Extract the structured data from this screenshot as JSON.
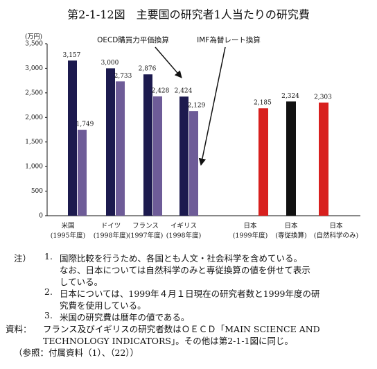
{
  "chart_data": {
    "type": "bar",
    "title": "第2-1-12図　主要国の研究者1人当たりの研究費",
    "unit_label": "(万円)",
    "categories": [
      "米国",
      "ドイツ",
      "フランス",
      "イギリス",
      "日本",
      "日本",
      "日本"
    ],
    "category_notes": [
      "(1995年度)",
      "(1998年度)",
      "(1997年度)",
      "(1998年度)",
      "(1999年度)",
      "(専従換算)",
      "(自然科学のみ)"
    ],
    "series": [
      {
        "name": "OECD購買力平価換算",
        "color": "#1c1a4e",
        "values": [
          3157,
          3000,
          2876,
          2424,
          null,
          null,
          null
        ],
        "value_labels": [
          "3,157",
          "3,000",
          "2,876",
          "2,424",
          null,
          null,
          null
        ]
      },
      {
        "name": "IMF為替レート換算",
        "color": "#6e5c98",
        "values": [
          1749,
          2733,
          2428,
          2129,
          null,
          null,
          null
        ],
        "value_labels": [
          "1,749",
          "2,733",
          "2,428",
          "2,129",
          null,
          null,
          null
        ]
      },
      {
        "colors": [
          null,
          null,
          null,
          null,
          "#d8201e",
          "#111111",
          "#d8201e"
        ],
        "values": [
          null,
          null,
          null,
          null,
          2185,
          2324,
          2303
        ],
        "value_labels": [
          null,
          null,
          null,
          null,
          "2,185",
          "2,324",
          "2,303"
        ]
      }
    ],
    "ylim": [
      0,
      3500
    ],
    "yticks": [
      0,
      500,
      {
        "value": 1000,
        "label": "1,000"
      },
      {
        "value": 1500,
        "label": "1,500"
      },
      {
        "value": 2000,
        "label": "2,000"
      },
      {
        "value": 2500,
        "label": "2,500"
      },
      {
        "value": 3000,
        "label": "3,000"
      },
      {
        "value": 3500,
        "label": "3,500"
      }
    ]
  },
  "notes": {
    "label": "注）",
    "items": [
      {
        "number": "1.",
        "lines": [
          "国際比較を行うため、各国とも人文・社会科学を含めている。",
          "なお、日本については自然科学のみと専従換算の値を併せて表示",
          "している。"
        ]
      },
      {
        "number": "2.",
        "lines": [
          "日本については、1999年４月１日現在の研究者数と1999年度の研",
          "究費を使用している。"
        ]
      },
      {
        "number": "3.",
        "lines": [
          "米国の研究費は暦年の値である。"
        ]
      }
    ],
    "source_label": "資料：",
    "source_lines": [
      "フランス及びイギリスの研究者数はＯＥＣＤ「MAIN SCIENCE AND",
      "TECHNOLOGY INDICATORS」。その他は第2-1-1図に同じ。"
    ],
    "reference": "（参照：付属資料（1）、（22））"
  }
}
